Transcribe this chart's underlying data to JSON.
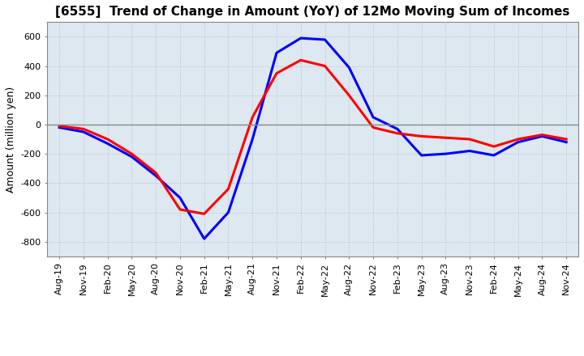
{
  "title": "[6555]  Trend of Change in Amount (YoY) of 12Mo Moving Sum of Incomes",
  "ylabel": "Amount (million yen)",
  "ylim": [
    -900,
    700
  ],
  "yticks": [
    -800,
    -600,
    -400,
    -200,
    0,
    200,
    400,
    600
  ],
  "background_color": "#ffffff",
  "plot_bg_color": "#dde8f0",
  "ordinary_income_color": "#0000ff",
  "net_income_color": "#ff0000",
  "line_width": 2.2,
  "x_labels": [
    "Aug-19",
    "Nov-19",
    "Feb-20",
    "May-20",
    "Aug-20",
    "Nov-20",
    "Feb-21",
    "May-21",
    "Aug-21",
    "Nov-21",
    "Feb-22",
    "May-22",
    "Aug-22",
    "Nov-22",
    "Feb-23",
    "May-23",
    "Aug-23",
    "Nov-23",
    "Feb-24",
    "May-24",
    "Aug-24",
    "Nov-24"
  ],
  "ordinary_income": [
    -20,
    -50,
    -130,
    -220,
    -350,
    -500,
    -780,
    -600,
    -100,
    490,
    590,
    580,
    390,
    50,
    -30,
    -210,
    -200,
    -180,
    -210,
    -120,
    -80,
    -120
  ],
  "net_income": [
    -10,
    -30,
    -100,
    -200,
    -330,
    -580,
    -610,
    -440,
    50,
    350,
    440,
    400,
    200,
    -20,
    -60,
    -80,
    -90,
    -100,
    -150,
    -100,
    -70,
    -100
  ],
  "grid_color": "#aabbcc",
  "grid_alpha": 1.0,
  "zero_line_color": "#888888",
  "tick_fontsize": 8,
  "ylabel_fontsize": 9,
  "title_fontsize": 11,
  "legend_fontsize": 9
}
